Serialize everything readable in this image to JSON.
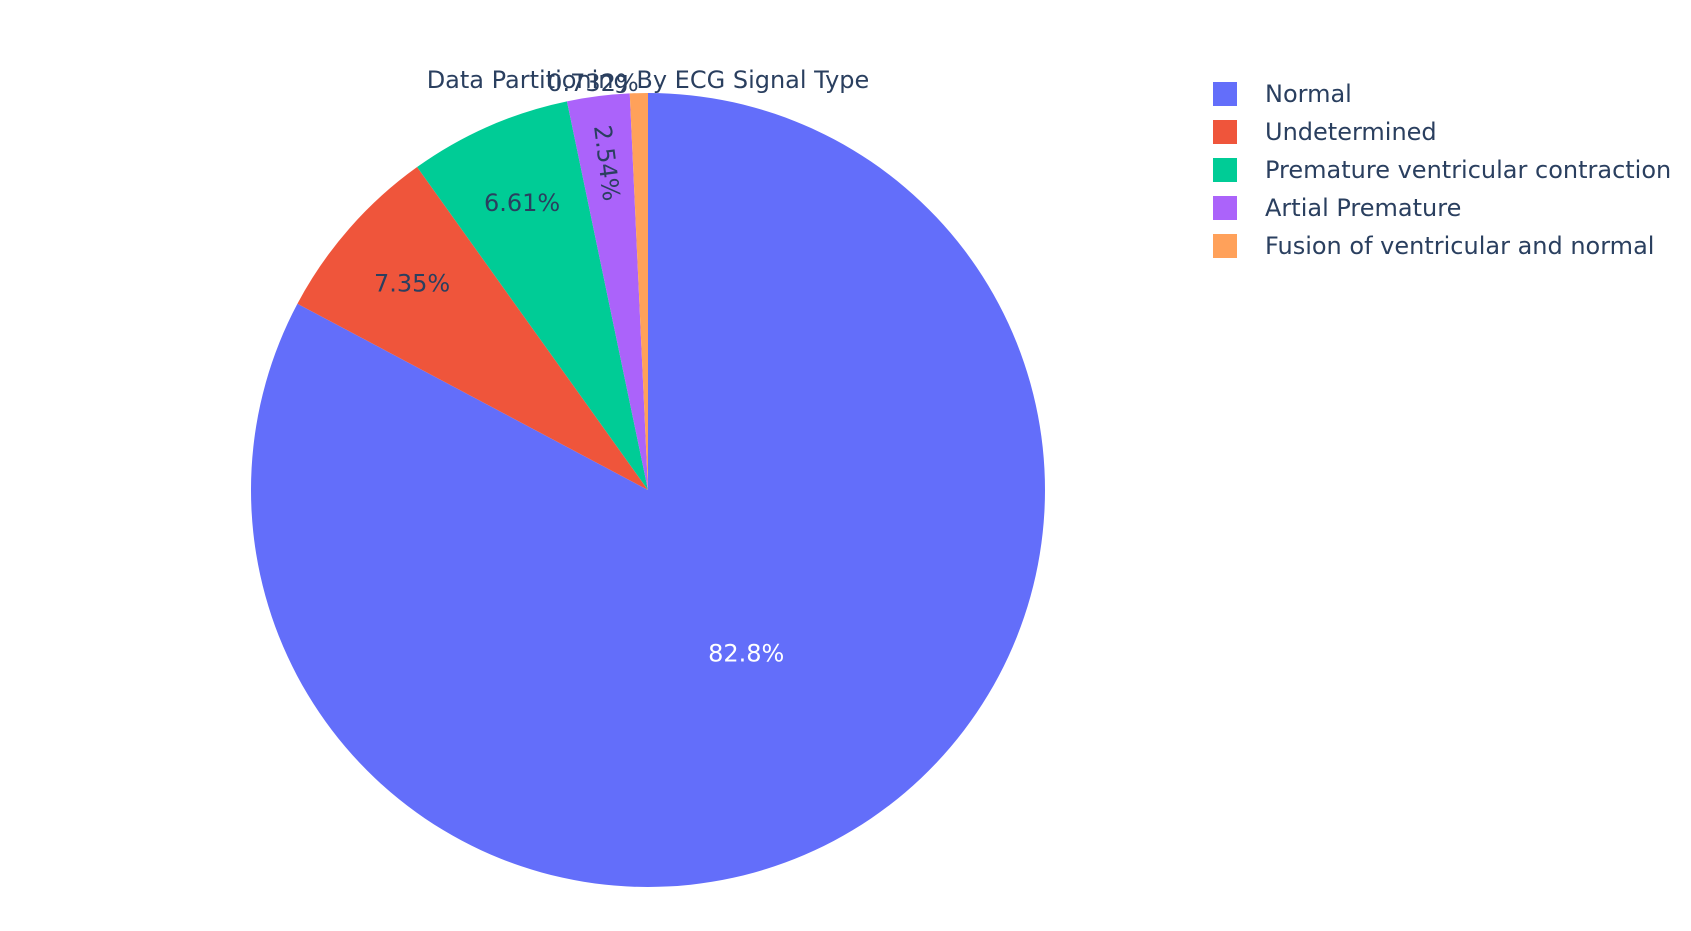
{
  "chart_data": {
    "type": "pie",
    "title": "Data Partitioning By ECG Signal Type",
    "categories": [
      "Normal",
      "Undetermined",
      "Premature ventricular contraction",
      "Artial Premature",
      "Fusion of ventricular and normal"
    ],
    "values": [
      82.8,
      7.35,
      6.61,
      2.54,
      0.732
    ],
    "labels": [
      "82.8%",
      "7.35%",
      "6.61%",
      "2.54%",
      "0.732%"
    ],
    "colors": [
      "#636efa",
      "#ef553b",
      "#00cc96",
      "#ab63fa",
      "#ffa15a"
    ],
    "legend": {
      "position": "top-right",
      "entries": [
        "Normal",
        "Undetermined",
        "Premature ventricular contraction",
        "Artial Premature",
        "Fusion of ventricular and normal"
      ]
    },
    "direction": "clockwise",
    "start_angle": "12 o'clock"
  }
}
